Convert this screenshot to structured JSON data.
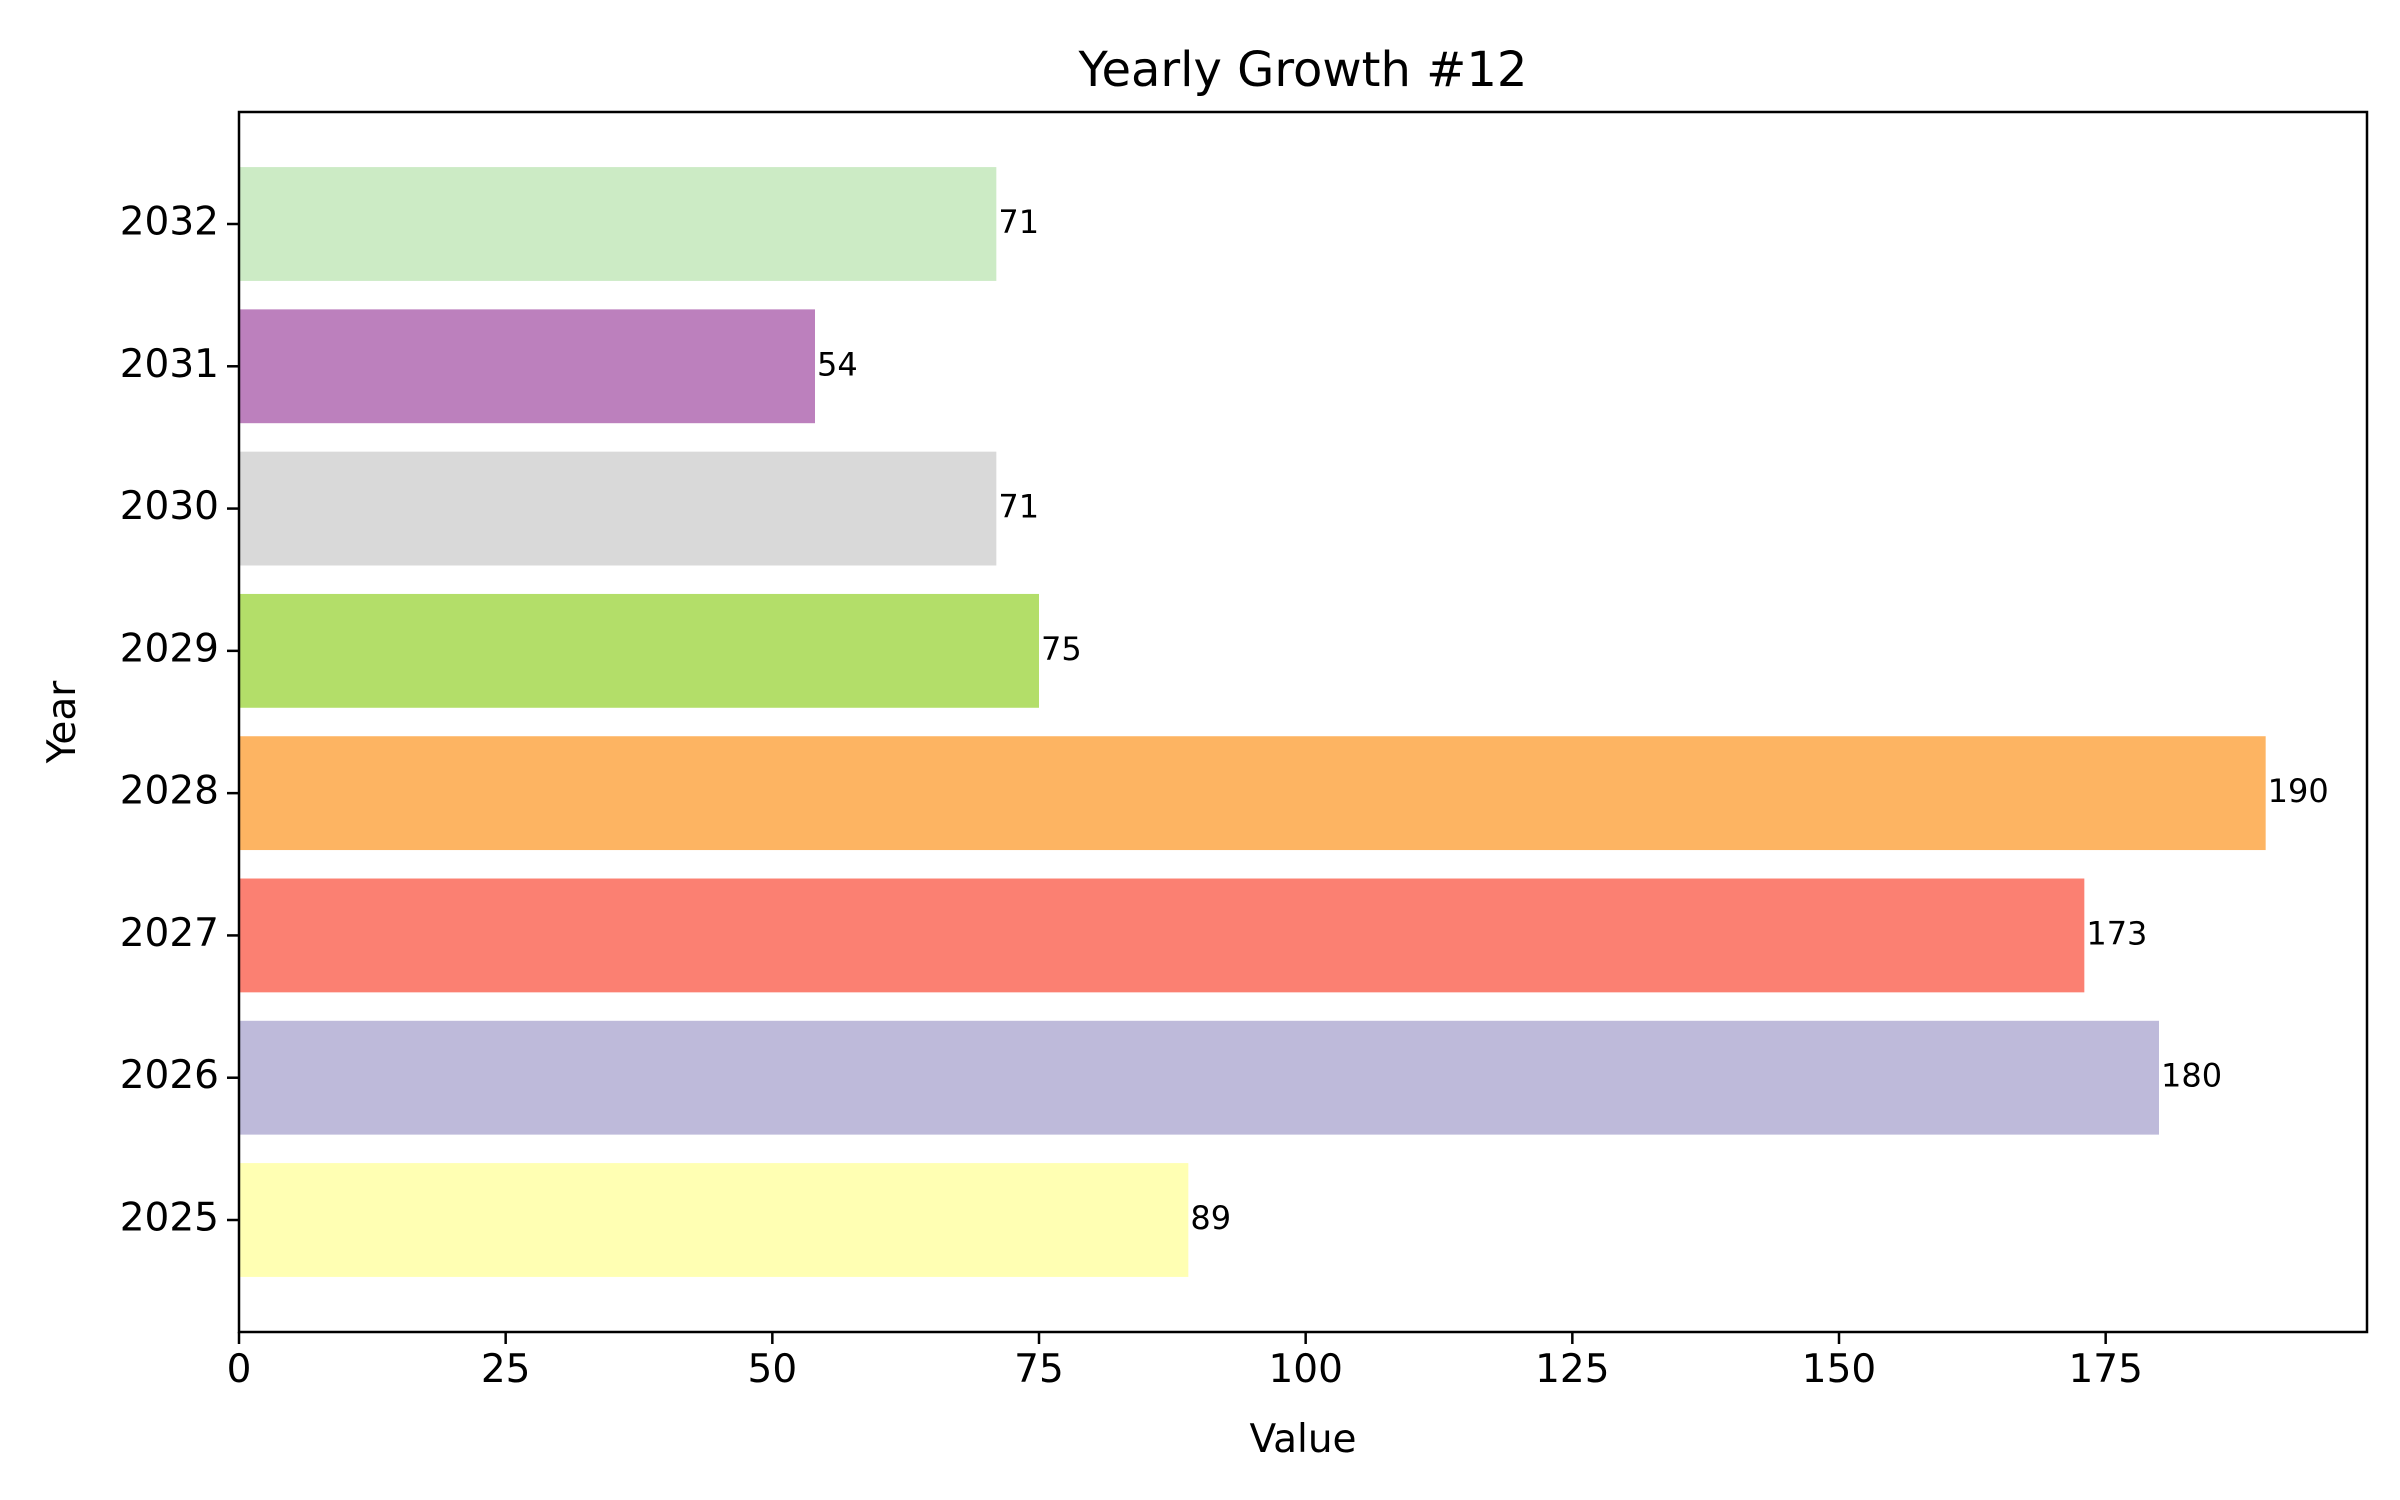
{
  "chart_data": {
    "type": "bar",
    "orientation": "horizontal",
    "title": "Yearly Growth #12",
    "xlabel": "Value",
    "ylabel": "Year",
    "categories": [
      "2025",
      "2026",
      "2027",
      "2028",
      "2029",
      "2030",
      "2031",
      "2032"
    ],
    "values": [
      89,
      180,
      173,
      190,
      75,
      71,
      54,
      71
    ],
    "colors": [
      "#ffffb3",
      "#bebada",
      "#fb8072",
      "#fdb462",
      "#b3de69",
      "#d9d9d9",
      "#bc80bd",
      "#ccebc5"
    ],
    "xlim": [
      0,
      199.5
    ],
    "xticks": [
      0,
      25,
      50,
      75,
      100,
      125,
      150,
      175
    ],
    "grid": false,
    "legend": "none"
  }
}
